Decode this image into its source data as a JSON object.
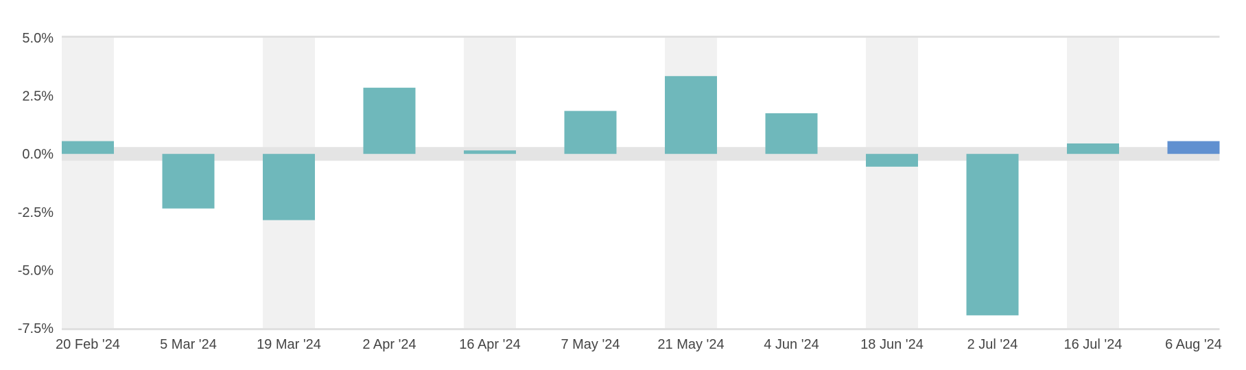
{
  "chart_data": {
    "type": "bar",
    "title": "",
    "xlabel": "",
    "ylabel": "",
    "categories": [
      "20 Feb '24",
      "5 Mar '24",
      "19 Mar '24",
      "2 Apr '24",
      "16 Apr '24",
      "7 May '24",
      "21 May '24",
      "4 Jun '24",
      "18 Jun '24",
      "2 Jul '24",
      "16 Jul '24",
      "6 Aug '24"
    ],
    "values": [
      0.55,
      -2.35,
      -2.85,
      2.85,
      0.15,
      1.85,
      3.35,
      1.75,
      -0.55,
      -6.95,
      0.45,
      0.55
    ],
    "ylim": [
      -7.5,
      5.0
    ],
    "yticks": [
      5.0,
      2.5,
      0.0,
      -2.5,
      -5.0,
      -7.5
    ],
    "ytick_labels": [
      "5.0%",
      "2.5%",
      "0.0%",
      "-2.5%",
      "-5.0%",
      "-7.5%"
    ],
    "grid": false,
    "alternating_column_bands": true,
    "legend": "none",
    "colors": {
      "bar": "#6fb8bb",
      "bar_last": "#6090d0",
      "band": "#f1f1f1",
      "zero_band": "#e4e4e4",
      "axis_line": "#e0e0e0",
      "tick_text": "#444444"
    }
  }
}
